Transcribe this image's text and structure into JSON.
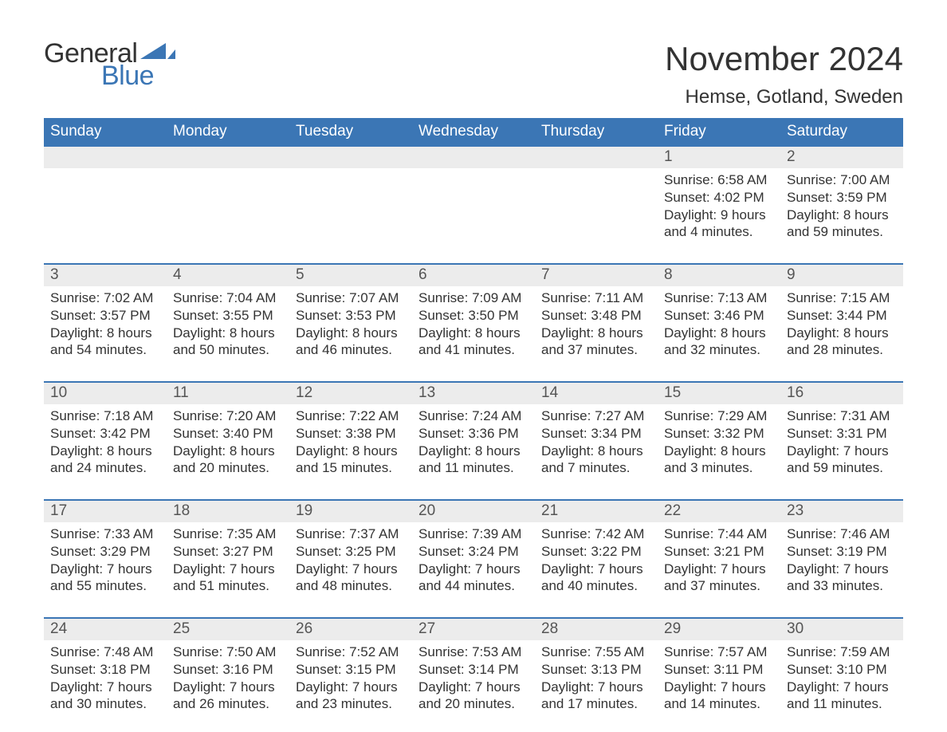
{
  "brand": {
    "part1": "General",
    "part2": "Blue",
    "color1": "#333333",
    "color2": "#3b76b5"
  },
  "title": "November 2024",
  "subtitle": "Hemse, Gotland, Sweden",
  "header_bg": "#3b76b5",
  "header_fg": "#ffffff",
  "daynum_bg": "#ececec",
  "border_color": "#3b76b5",
  "columns": [
    "Sunday",
    "Monday",
    "Tuesday",
    "Wednesday",
    "Thursday",
    "Friday",
    "Saturday"
  ],
  "weeks": [
    [
      null,
      null,
      null,
      null,
      null,
      {
        "n": "1",
        "sunrise": "6:58 AM",
        "sunset": "4:02 PM",
        "dl1": "9 hours",
        "dl2": "and 4 minutes."
      },
      {
        "n": "2",
        "sunrise": "7:00 AM",
        "sunset": "3:59 PM",
        "dl1": "8 hours",
        "dl2": "and 59 minutes."
      }
    ],
    [
      {
        "n": "3",
        "sunrise": "7:02 AM",
        "sunset": "3:57 PM",
        "dl1": "8 hours",
        "dl2": "and 54 minutes."
      },
      {
        "n": "4",
        "sunrise": "7:04 AM",
        "sunset": "3:55 PM",
        "dl1": "8 hours",
        "dl2": "and 50 minutes."
      },
      {
        "n": "5",
        "sunrise": "7:07 AM",
        "sunset": "3:53 PM",
        "dl1": "8 hours",
        "dl2": "and 46 minutes."
      },
      {
        "n": "6",
        "sunrise": "7:09 AM",
        "sunset": "3:50 PM",
        "dl1": "8 hours",
        "dl2": "and 41 minutes."
      },
      {
        "n": "7",
        "sunrise": "7:11 AM",
        "sunset": "3:48 PM",
        "dl1": "8 hours",
        "dl2": "and 37 minutes."
      },
      {
        "n": "8",
        "sunrise": "7:13 AM",
        "sunset": "3:46 PM",
        "dl1": "8 hours",
        "dl2": "and 32 minutes."
      },
      {
        "n": "9",
        "sunrise": "7:15 AM",
        "sunset": "3:44 PM",
        "dl1": "8 hours",
        "dl2": "and 28 minutes."
      }
    ],
    [
      {
        "n": "10",
        "sunrise": "7:18 AM",
        "sunset": "3:42 PM",
        "dl1": "8 hours",
        "dl2": "and 24 minutes."
      },
      {
        "n": "11",
        "sunrise": "7:20 AM",
        "sunset": "3:40 PM",
        "dl1": "8 hours",
        "dl2": "and 20 minutes."
      },
      {
        "n": "12",
        "sunrise": "7:22 AM",
        "sunset": "3:38 PM",
        "dl1": "8 hours",
        "dl2": "and 15 minutes."
      },
      {
        "n": "13",
        "sunrise": "7:24 AM",
        "sunset": "3:36 PM",
        "dl1": "8 hours",
        "dl2": "and 11 minutes."
      },
      {
        "n": "14",
        "sunrise": "7:27 AM",
        "sunset": "3:34 PM",
        "dl1": "8 hours",
        "dl2": "and 7 minutes."
      },
      {
        "n": "15",
        "sunrise": "7:29 AM",
        "sunset": "3:32 PM",
        "dl1": "8 hours",
        "dl2": "and 3 minutes."
      },
      {
        "n": "16",
        "sunrise": "7:31 AM",
        "sunset": "3:31 PM",
        "dl1": "7 hours",
        "dl2": "and 59 minutes."
      }
    ],
    [
      {
        "n": "17",
        "sunrise": "7:33 AM",
        "sunset": "3:29 PM",
        "dl1": "7 hours",
        "dl2": "and 55 minutes."
      },
      {
        "n": "18",
        "sunrise": "7:35 AM",
        "sunset": "3:27 PM",
        "dl1": "7 hours",
        "dl2": "and 51 minutes."
      },
      {
        "n": "19",
        "sunrise": "7:37 AM",
        "sunset": "3:25 PM",
        "dl1": "7 hours",
        "dl2": "and 48 minutes."
      },
      {
        "n": "20",
        "sunrise": "7:39 AM",
        "sunset": "3:24 PM",
        "dl1": "7 hours",
        "dl2": "and 44 minutes."
      },
      {
        "n": "21",
        "sunrise": "7:42 AM",
        "sunset": "3:22 PM",
        "dl1": "7 hours",
        "dl2": "and 40 minutes."
      },
      {
        "n": "22",
        "sunrise": "7:44 AM",
        "sunset": "3:21 PM",
        "dl1": "7 hours",
        "dl2": "and 37 minutes."
      },
      {
        "n": "23",
        "sunrise": "7:46 AM",
        "sunset": "3:19 PM",
        "dl1": "7 hours",
        "dl2": "and 33 minutes."
      }
    ],
    [
      {
        "n": "24",
        "sunrise": "7:48 AM",
        "sunset": "3:18 PM",
        "dl1": "7 hours",
        "dl2": "and 30 minutes."
      },
      {
        "n": "25",
        "sunrise": "7:50 AM",
        "sunset": "3:16 PM",
        "dl1": "7 hours",
        "dl2": "and 26 minutes."
      },
      {
        "n": "26",
        "sunrise": "7:52 AM",
        "sunset": "3:15 PM",
        "dl1": "7 hours",
        "dl2": "and 23 minutes."
      },
      {
        "n": "27",
        "sunrise": "7:53 AM",
        "sunset": "3:14 PM",
        "dl1": "7 hours",
        "dl2": "and 20 minutes."
      },
      {
        "n": "28",
        "sunrise": "7:55 AM",
        "sunset": "3:13 PM",
        "dl1": "7 hours",
        "dl2": "and 17 minutes."
      },
      {
        "n": "29",
        "sunrise": "7:57 AM",
        "sunset": "3:11 PM",
        "dl1": "7 hours",
        "dl2": "and 14 minutes."
      },
      {
        "n": "30",
        "sunrise": "7:59 AM",
        "sunset": "3:10 PM",
        "dl1": "7 hours",
        "dl2": "and 11 minutes."
      }
    ]
  ],
  "labels": {
    "sunrise": "Sunrise: ",
    "sunset": "Sunset: ",
    "daylight": "Daylight: "
  }
}
